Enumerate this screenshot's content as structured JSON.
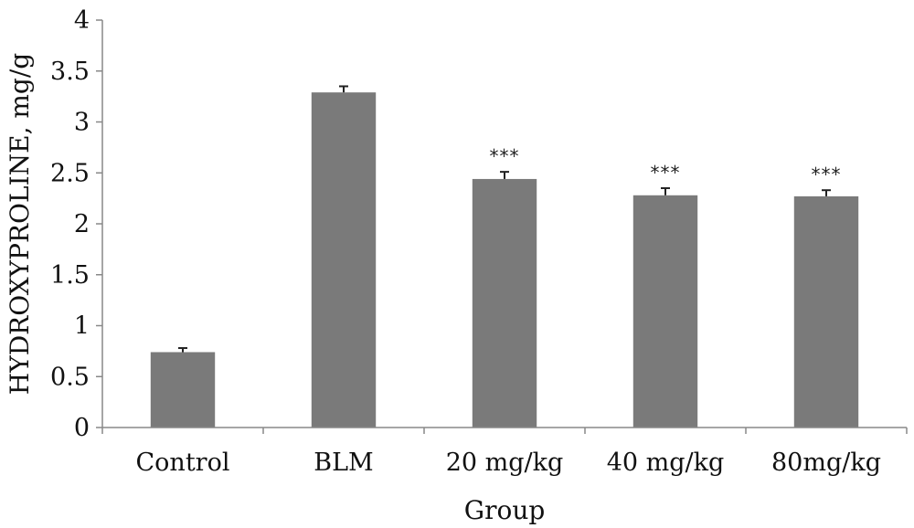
{
  "chart_data": {
    "type": "bar",
    "title": "",
    "xlabel": "Group",
    "ylabel": "HYDROXYPROLINE, mg/g",
    "ylim": [
      0,
      4
    ],
    "yticks": [
      "0",
      "0.5",
      "1",
      "1.5",
      "2",
      "2.5",
      "3",
      "3.5",
      "4"
    ],
    "grid": false,
    "legend": "none",
    "bar_color": "#7a7a7a",
    "categories": [
      "Control",
      "BLM",
      "20 mg/kg",
      "40 mg/kg",
      "80mg/kg"
    ],
    "values": [
      0.74,
      3.29,
      2.44,
      2.28,
      2.27
    ],
    "error": [
      0.04,
      0.06,
      0.07,
      0.07,
      0.06
    ],
    "annotations": [
      "",
      "",
      "***",
      "***",
      "***"
    ]
  }
}
